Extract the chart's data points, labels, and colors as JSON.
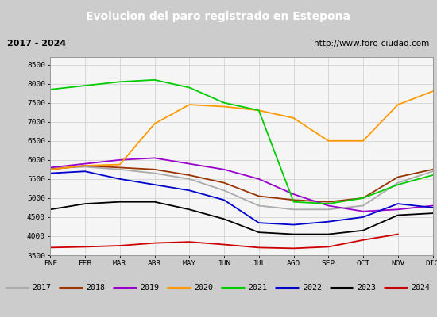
{
  "title": "Evolucion del paro registrado en Estepona",
  "subtitle_left": "2017 - 2024",
  "subtitle_right": "http://www.foro-ciudad.com",
  "months": [
    "ENE",
    "FEB",
    "MAR",
    "ABR",
    "MAY",
    "JUN",
    "JUL",
    "AGO",
    "SEP",
    "OCT",
    "NOV",
    "DIC"
  ],
  "ylim": [
    3500,
    8700
  ],
  "yticks": [
    3500,
    4000,
    4500,
    5000,
    5500,
    6000,
    6500,
    7000,
    7500,
    8000,
    8500
  ],
  "series": {
    "2017": {
      "color": "#aaaaaa",
      "data": [
        5780,
        5820,
        5750,
        5650,
        5500,
        5200,
        4800,
        4700,
        4700,
        4800,
        5400,
        5700
      ]
    },
    "2018": {
      "color": "#993300",
      "data": [
        5750,
        5850,
        5800,
        5750,
        5600,
        5400,
        5050,
        4950,
        4900,
        5000,
        5550,
        5750
      ]
    },
    "2019": {
      "color": "#9900cc",
      "data": [
        5800,
        5900,
        6000,
        6050,
        5900,
        5750,
        5500,
        5100,
        4800,
        4650,
        4700,
        4800
      ]
    },
    "2020": {
      "color": "#ff9900",
      "data": [
        5750,
        5850,
        5880,
        6950,
        7450,
        7400,
        7300,
        7100,
        6500,
        6500,
        7450,
        7800
      ]
    },
    "2021": {
      "color": "#00cc00",
      "data": [
        7850,
        7950,
        8050,
        8100,
        7900,
        7500,
        7300,
        4900,
        4850,
        5000,
        5350,
        5600
      ]
    },
    "2022": {
      "color": "#0000cc",
      "data": [
        5650,
        5700,
        5500,
        5350,
        5200,
        4950,
        4350,
        4300,
        4380,
        4500,
        4850,
        4750
      ]
    },
    "2023": {
      "color": "#000000",
      "data": [
        4700,
        4850,
        4900,
        4900,
        4700,
        4450,
        4100,
        4050,
        4050,
        4150,
        4550,
        4600
      ]
    },
    "2024": {
      "color": "#cc0000",
      "data": [
        3700,
        3720,
        3750,
        3820,
        3850,
        3780,
        3700,
        3680,
        3720,
        3900,
        4050,
        null
      ]
    }
  },
  "title_bg": "#5588cc",
  "title_fg": "#ffffff",
  "header_bg": "#eeeeee",
  "plot_bg": "#f5f5f5",
  "legend_bg": "#eeeeee",
  "grid_color": "#cccccc"
}
